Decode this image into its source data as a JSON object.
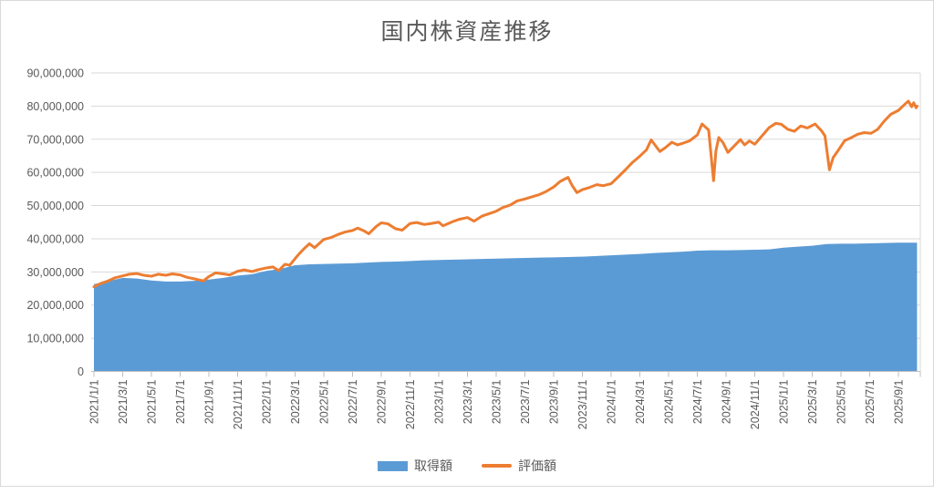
{
  "chart_data": {
    "type": "area+line",
    "title": "国内株資産推移",
    "xlabel": "",
    "ylabel": "",
    "ylim": [
      0,
      90000000
    ],
    "grid": "horizontal",
    "legend_position": "bottom",
    "y_ticks": [
      0,
      10000000,
      20000000,
      30000000,
      40000000,
      50000000,
      60000000,
      70000000,
      80000000,
      90000000
    ],
    "y_tick_labels": [
      "0",
      "10,000,000",
      "20,000,000",
      "30,000,000",
      "40,000,000",
      "50,000,000",
      "60,000,000",
      "70,000,000",
      "80,000,000",
      "90,000,000"
    ],
    "x_tick_labels": [
      "2021/1/1",
      "2021/3/1",
      "2021/5/1",
      "2021/7/1",
      "2021/9/1",
      "2021/11/1",
      "2022/1/1",
      "2022/3/1",
      "2022/5/1",
      "2022/7/1",
      "2022/9/1",
      "2022/11/1",
      "2023/1/1",
      "2023/3/1",
      "2023/5/1",
      "2023/7/1",
      "2023/9/1",
      "2023/11/1",
      "2024/1/1",
      "2024/3/1",
      "2024/5/1",
      "2024/7/1",
      "2024/9/1",
      "2024/11/1",
      "2025/1/1",
      "2025/3/1",
      "2025/5/1",
      "2025/7/1",
      "2025/9/1"
    ],
    "colors": {
      "area_series": "#5B9BD5",
      "line_series": "#ED7D31",
      "axis_text": "#595959",
      "gridline": "#D9D9D9",
      "axis_line": "#BFBFBF"
    },
    "series": [
      {
        "name": "取得額",
        "type": "area",
        "color": "#5B9BD5",
        "points": [
          [
            "2021/1/1",
            26300000
          ],
          [
            "2021/2/1",
            27200000
          ],
          [
            "2021/3/1",
            28200000
          ],
          [
            "2021/4/1",
            28000000
          ],
          [
            "2021/5/1",
            27400000
          ],
          [
            "2021/6/1",
            27100000
          ],
          [
            "2021/7/1",
            27100000
          ],
          [
            "2021/8/1",
            27300000
          ],
          [
            "2021/9/1",
            27700000
          ],
          [
            "2021/10/1",
            28200000
          ],
          [
            "2021/11/1",
            28900000
          ],
          [
            "2021/12/1",
            29300000
          ],
          [
            "2022/1/1",
            30300000
          ],
          [
            "2022/2/1",
            30900000
          ],
          [
            "2022/3/1",
            32000000
          ],
          [
            "2022/4/1",
            32300000
          ],
          [
            "2022/5/1",
            32400000
          ],
          [
            "2022/6/1",
            32500000
          ],
          [
            "2022/7/1",
            32600000
          ],
          [
            "2022/8/1",
            32800000
          ],
          [
            "2022/9/1",
            33000000
          ],
          [
            "2022/10/1",
            33100000
          ],
          [
            "2022/11/1",
            33300000
          ],
          [
            "2022/12/1",
            33500000
          ],
          [
            "2023/1/1",
            33600000
          ],
          [
            "2023/2/1",
            33700000
          ],
          [
            "2023/3/1",
            33800000
          ],
          [
            "2023/4/1",
            33900000
          ],
          [
            "2023/5/1",
            34000000
          ],
          [
            "2023/6/1",
            34100000
          ],
          [
            "2023/7/1",
            34200000
          ],
          [
            "2023/8/1",
            34300000
          ],
          [
            "2023/9/1",
            34400000
          ],
          [
            "2023/10/1",
            34500000
          ],
          [
            "2023/11/1",
            34600000
          ],
          [
            "2023/12/1",
            34800000
          ],
          [
            "2024/1/1",
            35000000
          ],
          [
            "2024/2/1",
            35200000
          ],
          [
            "2024/3/1",
            35400000
          ],
          [
            "2024/4/1",
            35700000
          ],
          [
            "2024/5/1",
            35900000
          ],
          [
            "2024/6/1",
            36100000
          ],
          [
            "2024/7/1",
            36400000
          ],
          [
            "2024/8/1",
            36500000
          ],
          [
            "2024/9/1",
            36500000
          ],
          [
            "2024/10/1",
            36600000
          ],
          [
            "2024/11/1",
            36700000
          ],
          [
            "2024/12/1",
            36800000
          ],
          [
            "2025/1/1",
            37300000
          ],
          [
            "2025/2/1",
            37600000
          ],
          [
            "2025/3/1",
            37900000
          ],
          [
            "2025/4/1",
            38400000
          ],
          [
            "2025/5/1",
            38500000
          ],
          [
            "2025/6/1",
            38500000
          ],
          [
            "2025/7/1",
            38600000
          ],
          [
            "2025/8/1",
            38700000
          ],
          [
            "2025/9/1",
            38800000
          ],
          [
            "2025/10/10",
            38800000
          ]
        ]
      },
      {
        "name": "評価額",
        "type": "line",
        "color": "#ED7D31",
        "points": [
          [
            "2021/1/1",
            25500000
          ],
          [
            "2021/1/15",
            26500000
          ],
          [
            "2021/2/1",
            27300000
          ],
          [
            "2021/2/15",
            28200000
          ],
          [
            "2021/3/1",
            28800000
          ],
          [
            "2021/3/15",
            29300000
          ],
          [
            "2021/4/1",
            29500000
          ],
          [
            "2021/4/15",
            29000000
          ],
          [
            "2021/5/1",
            28700000
          ],
          [
            "2021/5/15",
            29300000
          ],
          [
            "2021/6/1",
            29000000
          ],
          [
            "2021/6/15",
            29400000
          ],
          [
            "2021/7/1",
            29100000
          ],
          [
            "2021/7/15",
            28400000
          ],
          [
            "2021/8/1",
            27900000
          ],
          [
            "2021/8/20",
            27300000
          ],
          [
            "2021/9/1",
            28600000
          ],
          [
            "2021/9/15",
            29700000
          ],
          [
            "2021/10/1",
            29400000
          ],
          [
            "2021/10/15",
            29100000
          ],
          [
            "2021/11/1",
            30200000
          ],
          [
            "2021/11/15",
            30600000
          ],
          [
            "2021/12/1",
            30100000
          ],
          [
            "2021/12/15",
            30700000
          ],
          [
            "2022/1/1",
            31200000
          ],
          [
            "2022/1/15",
            31500000
          ],
          [
            "2022/1/27",
            30400000
          ],
          [
            "2022/2/10",
            32300000
          ],
          [
            "2022/2/20",
            32000000
          ],
          [
            "2022/3/1",
            34000000
          ],
          [
            "2022/3/10",
            35500000
          ],
          [
            "2022/3/20",
            37000000
          ],
          [
            "2022/4/1",
            38500000
          ],
          [
            "2022/4/12",
            37300000
          ],
          [
            "2022/5/1",
            39800000
          ],
          [
            "2022/5/15",
            40300000
          ],
          [
            "2022/6/1",
            41300000
          ],
          [
            "2022/6/15",
            42000000
          ],
          [
            "2022/7/1",
            42500000
          ],
          [
            "2022/7/12",
            43200000
          ],
          [
            "2022/7/25",
            42400000
          ],
          [
            "2022/8/5",
            41500000
          ],
          [
            "2022/8/20",
            43600000
          ],
          [
            "2022/9/1",
            44800000
          ],
          [
            "2022/9/15",
            44500000
          ],
          [
            "2022/10/1",
            43000000
          ],
          [
            "2022/10/15",
            42600000
          ],
          [
            "2022/11/1",
            44600000
          ],
          [
            "2022/11/15",
            44900000
          ],
          [
            "2022/12/1",
            44300000
          ],
          [
            "2022/12/15",
            44600000
          ],
          [
            "2023/1/1",
            45000000
          ],
          [
            "2023/1/10",
            43900000
          ],
          [
            "2023/2/1",
            45200000
          ],
          [
            "2023/2/15",
            45900000
          ],
          [
            "2023/3/1",
            46400000
          ],
          [
            "2023/3/15",
            45300000
          ],
          [
            "2023/4/1",
            46800000
          ],
          [
            "2023/4/15",
            47500000
          ],
          [
            "2023/5/1",
            48300000
          ],
          [
            "2023/5/15",
            49400000
          ],
          [
            "2023/6/1",
            50200000
          ],
          [
            "2023/6/15",
            51400000
          ],
          [
            "2023/7/1",
            52000000
          ],
          [
            "2023/7/15",
            52600000
          ],
          [
            "2023/8/1",
            53300000
          ],
          [
            "2023/8/15",
            54200000
          ],
          [
            "2023/9/1",
            55600000
          ],
          [
            "2023/9/15",
            57300000
          ],
          [
            "2023/10/1",
            58500000
          ],
          [
            "2023/10/10",
            56000000
          ],
          [
            "2023/10/20",
            53900000
          ],
          [
            "2023/11/1",
            54800000
          ],
          [
            "2023/11/15",
            55400000
          ],
          [
            "2023/12/1",
            56300000
          ],
          [
            "2023/12/15",
            56000000
          ],
          [
            "2024/1/1",
            56600000
          ],
          [
            "2024/1/15",
            58500000
          ],
          [
            "2024/2/1",
            60800000
          ],
          [
            "2024/2/15",
            62900000
          ],
          [
            "2024/3/1",
            64900000
          ],
          [
            "2024/3/15",
            66800000
          ],
          [
            "2024/3/25",
            69800000
          ],
          [
            "2024/4/13",
            66300000
          ],
          [
            "2024/4/25",
            67500000
          ],
          [
            "2024/5/8",
            69100000
          ],
          [
            "2024/5/20",
            68300000
          ],
          [
            "2024/6/1",
            68800000
          ],
          [
            "2024/6/15",
            69500000
          ],
          [
            "2024/7/1",
            71300000
          ],
          [
            "2024/7/11",
            74600000
          ],
          [
            "2024/7/25",
            72800000
          ],
          [
            "2024/8/5",
            57500000
          ],
          [
            "2024/8/10",
            66500000
          ],
          [
            "2024/8/16",
            70500000
          ],
          [
            "2024/8/25",
            69000000
          ],
          [
            "2024/9/5",
            66000000
          ],
          [
            "2024/9/15",
            67500000
          ],
          [
            "2024/10/1",
            69900000
          ],
          [
            "2024/10/10",
            68300000
          ],
          [
            "2024/10/20",
            69500000
          ],
          [
            "2024/11/1",
            68500000
          ],
          [
            "2024/11/15",
            70800000
          ],
          [
            "2024/12/1",
            73500000
          ],
          [
            "2024/12/15",
            74800000
          ],
          [
            "2024/12/27",
            74500000
          ],
          [
            "2025/1/10",
            73000000
          ],
          [
            "2025/1/24",
            72400000
          ],
          [
            "2025/2/7",
            74000000
          ],
          [
            "2025/2/21",
            73400000
          ],
          [
            "2025/3/7",
            74600000
          ],
          [
            "2025/3/21",
            72500000
          ],
          [
            "2025/3/28",
            71000000
          ],
          [
            "2025/4/7",
            60800000
          ],
          [
            "2025/4/15",
            64500000
          ],
          [
            "2025/4/25",
            66500000
          ],
          [
            "2025/5/9",
            69600000
          ],
          [
            "2025/5/23",
            70500000
          ],
          [
            "2025/6/6",
            71500000
          ],
          [
            "2025/6/20",
            72000000
          ],
          [
            "2025/7/4",
            71800000
          ],
          [
            "2025/7/18",
            73000000
          ],
          [
            "2025/8/1",
            75400000
          ],
          [
            "2025/8/15",
            77500000
          ],
          [
            "2025/9/1",
            78700000
          ],
          [
            "2025/9/12",
            80200000
          ],
          [
            "2025/9/22",
            81500000
          ],
          [
            "2025/9/29",
            79800000
          ],
          [
            "2025/10/3",
            81000000
          ],
          [
            "2025/10/8",
            79500000
          ],
          [
            "2025/10/10",
            80000000
          ]
        ]
      }
    ]
  }
}
